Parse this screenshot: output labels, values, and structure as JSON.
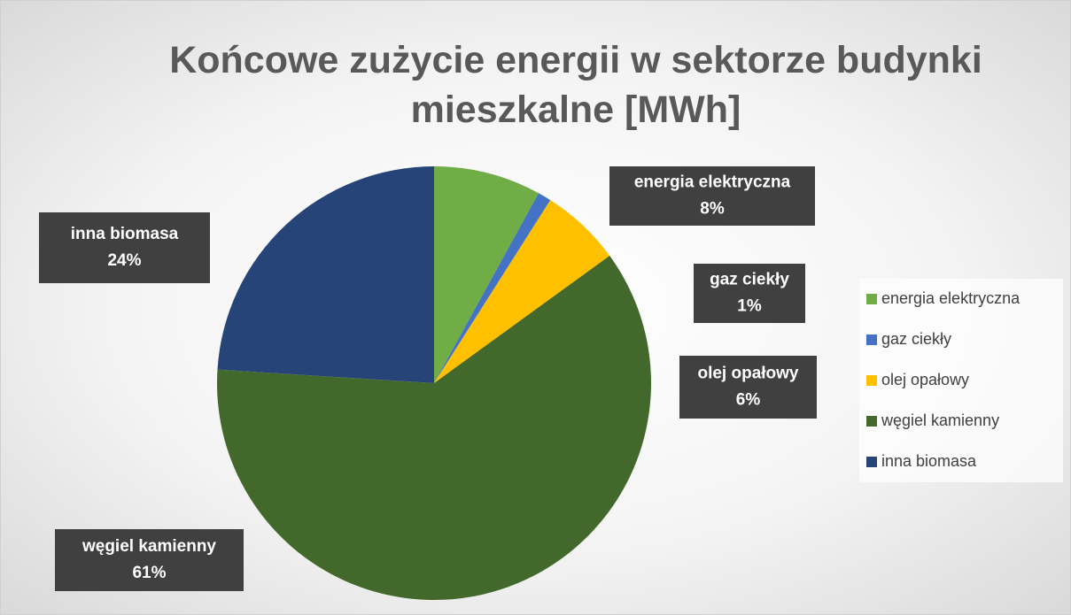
{
  "chart_data": {
    "type": "pie",
    "title": "Końcowe zużycie energii w sektorze budynki mieszkalne [MWh]",
    "categories": [
      "energia elektryczna",
      "gaz ciekły",
      "olej opałowy",
      "węgiel kamienny",
      "inna biomasa"
    ],
    "values": [
      8,
      1,
      6,
      61,
      24
    ],
    "value_labels": [
      "8%",
      "1%",
      "6%",
      "61%",
      "24%"
    ],
    "colors": [
      "#70ad47",
      "#4472c4",
      "#ffc000",
      "#43682b",
      "#264478"
    ],
    "legend": "right"
  }
}
